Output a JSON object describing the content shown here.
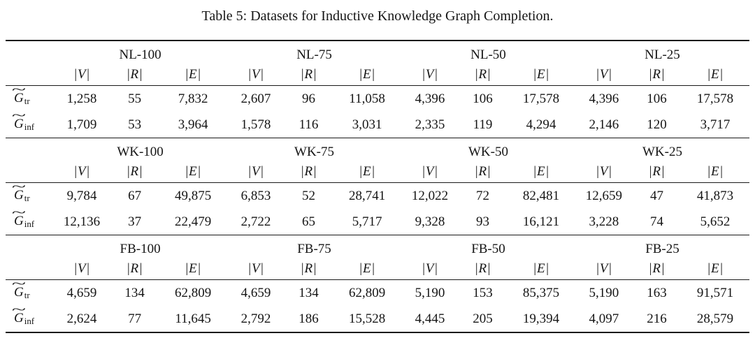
{
  "title": "Table 5: Datasets for Inductive Knowledge Graph Completion.",
  "table": {
    "col_headers": {
      "v": "|V|",
      "r": "|R|",
      "e": "|E|"
    },
    "row_labels": [
      {
        "tilde": "~",
        "base": "G",
        "sub": "tr"
      },
      {
        "tilde": "~",
        "base": "G",
        "sub": "inf"
      }
    ],
    "sections": [
      {
        "groups": [
          "NL-100",
          "NL-75",
          "NL-50",
          "NL-25"
        ],
        "rows": {
          "tr": [
            "1,258",
            "55",
            "7,832",
            "2,607",
            "96",
            "11,058",
            "4,396",
            "106",
            "17,578",
            "4,396",
            "106",
            "17,578"
          ],
          "inf": [
            "1,709",
            "53",
            "3,964",
            "1,578",
            "116",
            "3,031",
            "2,335",
            "119",
            "4,294",
            "2,146",
            "120",
            "3,717"
          ]
        }
      },
      {
        "groups": [
          "WK-100",
          "WK-75",
          "WK-50",
          "WK-25"
        ],
        "rows": {
          "tr": [
            "9,784",
            "67",
            "49,875",
            "6,853",
            "52",
            "28,741",
            "12,022",
            "72",
            "82,481",
            "12,659",
            "47",
            "41,873"
          ],
          "inf": [
            "12,136",
            "37",
            "22,479",
            "2,722",
            "65",
            "5,717",
            "9,328",
            "93",
            "16,121",
            "3,228",
            "74",
            "5,652"
          ]
        }
      },
      {
        "groups": [
          "FB-100",
          "FB-75",
          "FB-50",
          "FB-25"
        ],
        "rows": {
          "tr": [
            "4,659",
            "134",
            "62,809",
            "4,659",
            "134",
            "62,809",
            "5,190",
            "153",
            "85,375",
            "5,190",
            "163",
            "91,571"
          ],
          "inf": [
            "2,624",
            "77",
            "11,645",
            "2,792",
            "186",
            "15,528",
            "4,445",
            "205",
            "19,394",
            "4,097",
            "216",
            "28,579"
          ]
        }
      }
    ]
  }
}
